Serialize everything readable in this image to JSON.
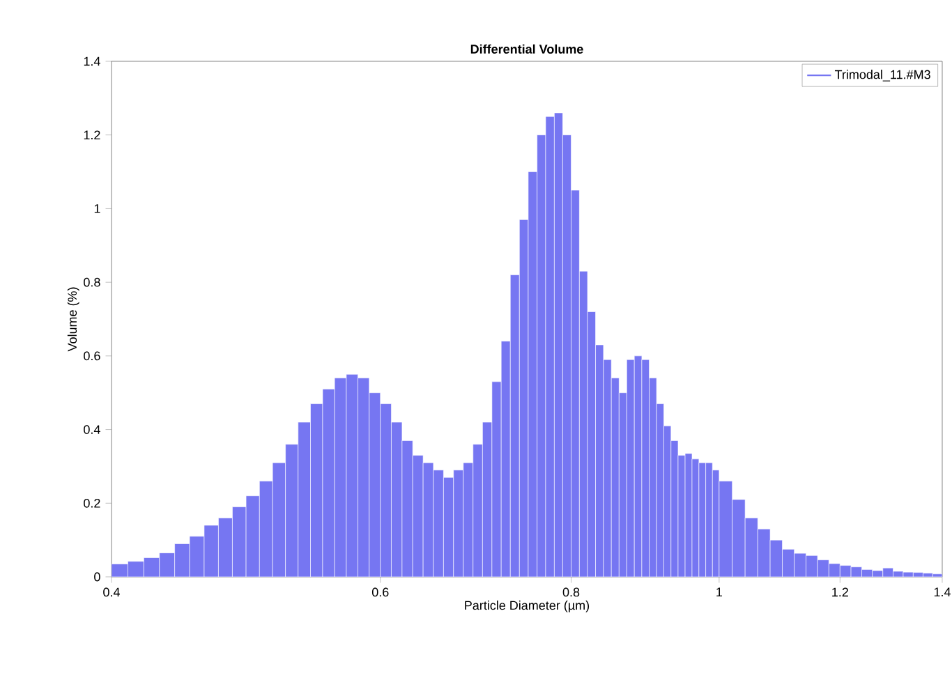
{
  "chart_data": {
    "type": "histogram",
    "title": "Differential Volume",
    "xlabel": "Particle Diameter (µm)",
    "ylabel": "Volume (%)",
    "log": "x",
    "legend": "top right",
    "xlim": [
      0.4,
      1.4
    ],
    "xticks": [
      0.4,
      0.6,
      0.8,
      1,
      1.2,
      1.4
    ],
    "ylim": [
      0,
      1.4
    ],
    "yticks": [
      0,
      0.2,
      0.4,
      0.6,
      0.8,
      1,
      1.2,
      1.4
    ],
    "bins": [
      0.4,
      0.41,
      0.42,
      0.43,
      0.44,
      0.45,
      0.46,
      0.47,
      0.48,
      0.49,
      0.5,
      0.51,
      0.52,
      0.53,
      0.54,
      0.55,
      0.56,
      0.57,
      0.58,
      0.59,
      0.6,
      0.61,
      0.62,
      0.63,
      0.64,
      0.65,
      0.66,
      0.67,
      0.68,
      0.69,
      0.7,
      0.71,
      0.72,
      0.73,
      0.74,
      0.75,
      0.76,
      0.77,
      0.78,
      0.79,
      0.8,
      0.81,
      0.82,
      0.83,
      0.84,
      0.85,
      0.86,
      0.87,
      0.88,
      0.89,
      0.9,
      0.91,
      0.92,
      0.93,
      0.94,
      0.95,
      0.96,
      0.97,
      0.98,
      0.99,
      1.0,
      1.02,
      1.04,
      1.06,
      1.08,
      1.1,
      1.12,
      1.14,
      1.16,
      1.18,
      1.2,
      1.22,
      1.24,
      1.26,
      1.28,
      1.3,
      1.32,
      1.34,
      1.36,
      1.38,
      1.4
    ],
    "series": [
      {
        "name": "Trimodal_11.#M3",
        "color": "#7676f2",
        "values": [
          0.035,
          0.042,
          0.052,
          0.065,
          0.09,
          0.11,
          0.14,
          0.16,
          0.19,
          0.22,
          0.26,
          0.31,
          0.36,
          0.42,
          0.47,
          0.51,
          0.54,
          0.55,
          0.54,
          0.5,
          0.47,
          0.42,
          0.37,
          0.33,
          0.31,
          0.29,
          0.27,
          0.29,
          0.31,
          0.36,
          0.42,
          0.53,
          0.64,
          0.82,
          0.97,
          1.1,
          1.2,
          1.25,
          1.26,
          1.2,
          1.05,
          0.83,
          0.72,
          0.63,
          0.59,
          0.54,
          0.5,
          0.59,
          0.6,
          0.59,
          0.54,
          0.47,
          0.41,
          0.37,
          0.33,
          0.335,
          0.32,
          0.31,
          0.31,
          0.29,
          0.26,
          0.21,
          0.16,
          0.13,
          0.1,
          0.075,
          0.064,
          0.058,
          0.046,
          0.036,
          0.031,
          0.027,
          0.02,
          0.017,
          0.024,
          0.015,
          0.013,
          0.012,
          0.01,
          0.008
        ]
      }
    ]
  }
}
